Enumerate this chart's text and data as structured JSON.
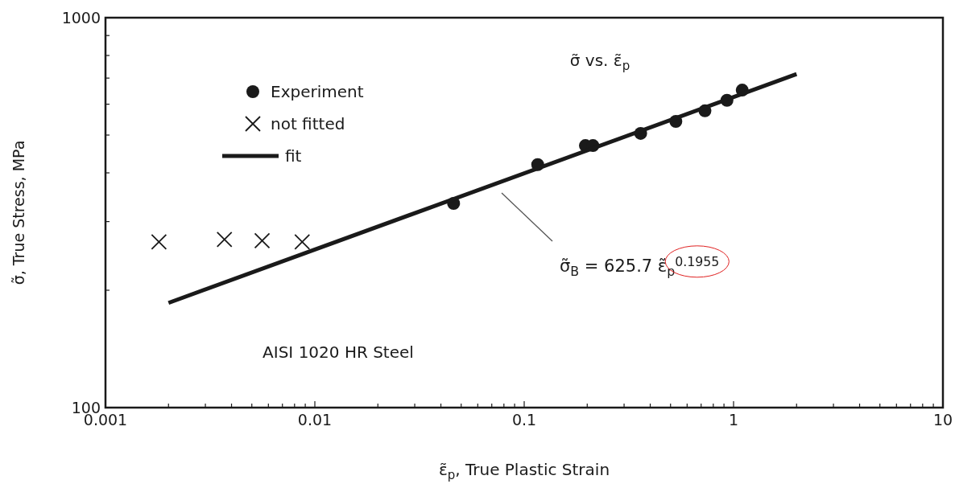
{
  "chart_data": {
    "type": "scatter",
    "title": "σ̃ vs. ε̃$_{p}$",
    "xlabel": "ε̃$_{p}$, True Plastic Strain",
    "ylabel": "σ̃, True Stress, MPa",
    "log": "xy",
    "grid": false,
    "legend": "top left",
    "xlim": [
      0.001,
      10
    ],
    "ylim": [
      100,
      1000
    ],
    "xticks": [
      0.001,
      {
        "value": 0.002,
        "label": null
      },
      {
        "value": 0.003,
        "label": null
      },
      {
        "value": 0.004,
        "label": null
      },
      {
        "value": 0.005,
        "label": null
      },
      {
        "value": 0.006,
        "label": null
      },
      {
        "value": 0.007,
        "label": null
      },
      {
        "value": 0.008,
        "label": null
      },
      {
        "value": 0.009,
        "label": null
      },
      0.01,
      {
        "value": 0.02,
        "label": null
      },
      {
        "value": 0.03,
        "label": null
      },
      {
        "value": 0.04,
        "label": null
      },
      {
        "value": 0.05,
        "label": null
      },
      {
        "value": 0.06,
        "label": null
      },
      {
        "value": 0.07,
        "label": null
      },
      {
        "value": 0.08,
        "label": null
      },
      {
        "value": 0.09,
        "label": null
      },
      0.1,
      {
        "value": 0.2,
        "label": null
      },
      {
        "value": 0.3,
        "label": null
      },
      {
        "value": 0.4,
        "label": null
      },
      {
        "value": 0.5,
        "label": null
      },
      {
        "value": 0.6,
        "label": null
      },
      {
        "value": 0.7,
        "label": null
      },
      {
        "value": 0.8,
        "label": null
      },
      {
        "value": 0.9,
        "label": null
      },
      1,
      {
        "value": 2,
        "label": null
      },
      {
        "value": 3,
        "label": null
      },
      {
        "value": 4,
        "label": null
      },
      {
        "value": 5,
        "label": null
      },
      {
        "value": 6,
        "label": null
      },
      {
        "value": 7,
        "label": null
      },
      {
        "value": 8,
        "label": null
      },
      {
        "value": 9,
        "label": null
      },
      10
    ],
    "yticks": [
      100,
      {
        "value": 200,
        "label": null
      },
      {
        "value": 300,
        "label": null
      },
      {
        "value": 400,
        "label": null
      },
      {
        "value": 500,
        "label": null
      },
      {
        "value": 600,
        "label": null
      },
      {
        "value": 700,
        "label": null
      },
      {
        "value": 800,
        "label": null
      },
      {
        "value": 900,
        "label": null
      },
      1000
    ],
    "series": [
      {
        "name": "Experiment",
        "type": "scatter",
        "marker": "circle",
        "color": "#1a1a1a",
        "x": [
          0.046,
          0.116,
          0.196,
          0.213,
          0.36,
          0.53,
          0.73,
          0.93,
          1.1
        ],
        "values": [
          334,
          420,
          470,
          470,
          505,
          542,
          577,
          614,
          652
        ]
      },
      {
        "name": "not fitted",
        "type": "scatter",
        "marker": "cross",
        "color": "#1a1a1a",
        "x": [
          0.0018,
          0.0037,
          0.0056,
          0.0087
        ],
        "values": [
          266,
          270,
          268,
          266
        ]
      },
      {
        "name": "fit",
        "type": "line",
        "marker": "none",
        "line_style": "solid",
        "color": "#1a1a1a",
        "x": [
          0.002,
          2
        ],
        "values": [
          185.6,
          716.6
        ]
      }
    ],
    "annotations": [
      "σ̃$_{B}$ = 625.7 ε̃$_{p}$$^{0.1955}$",
      "AISI 1020 HR Steel"
    ]
  }
}
